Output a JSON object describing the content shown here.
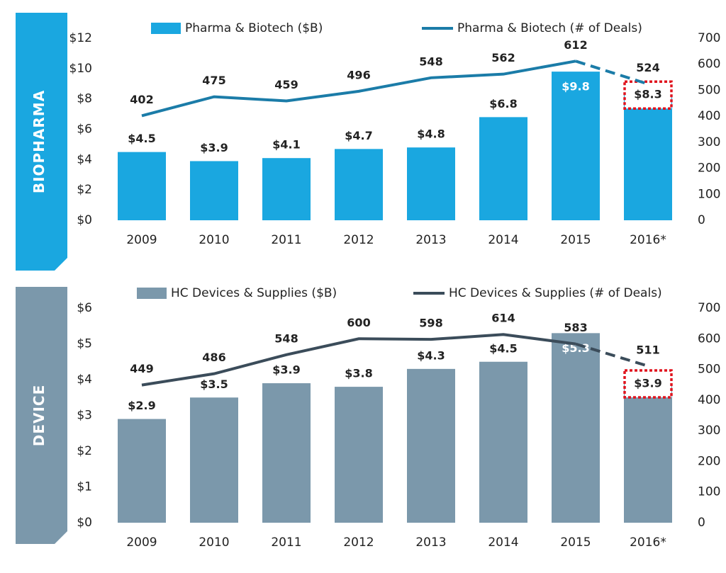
{
  "chart_data": [
    {
      "type": "bar",
      "panel_label": "BIOPHARMA",
      "panel_color": "#1aa7e0",
      "categories": [
        "2009",
        "2010",
        "2011",
        "2012",
        "2013",
        "2014",
        "2015",
        "2016*"
      ],
      "series": [
        {
          "name": "Pharma & Biotech ($B)",
          "type": "bar",
          "color": "#1aa7e0",
          "values": [
            4.5,
            3.9,
            4.1,
            4.7,
            4.8,
            6.8,
            9.8,
            8.3
          ],
          "value_labels": [
            "$4.5",
            "$3.9",
            "$4.1",
            "$4.7",
            "$4.8",
            "$6.8",
            "$9.8",
            "$8.3"
          ]
        },
        {
          "name": "Pharma & Biotech (# of Deals)",
          "type": "line",
          "axis": "y2",
          "color": "#1b7ca8",
          "values": [
            402,
            475,
            459,
            496,
            548,
            562,
            612,
            524
          ]
        }
      ],
      "ylim": [
        0,
        12
      ],
      "yticks": [
        {
          "value": 0,
          "label": "$0"
        },
        {
          "value": 2,
          "label": "$2"
        },
        {
          "value": 4,
          "label": "$4"
        },
        {
          "value": 6,
          "label": "$6"
        },
        {
          "value": 8,
          "label": "$8"
        },
        {
          "value": 10,
          "label": "$10"
        },
        {
          "value": 12,
          "label": "$12"
        }
      ],
      "y2lim": [
        0,
        700
      ],
      "y2ticks": [
        0,
        100,
        200,
        300,
        400,
        500,
        600,
        700
      ]
    },
    {
      "type": "bar",
      "panel_label": "DEVICE",
      "panel_color": "#7b98ab",
      "categories": [
        "2009",
        "2010",
        "2011",
        "2012",
        "2013",
        "2014",
        "2015",
        "2016*"
      ],
      "series": [
        {
          "name": "HC Devices & Supplies ($B)",
          "type": "bar",
          "color": "#7b98ab",
          "values": [
            2.9,
            3.5,
            3.9,
            3.8,
            4.3,
            4.5,
            5.3,
            3.9
          ],
          "value_labels": [
            "$2.9",
            "$3.5",
            "$3.9",
            "$3.8",
            "$4.3",
            "$4.5",
            "$5.3",
            "$3.9"
          ]
        },
        {
          "name": "HC Devices & Supplies (# of Deals)",
          "type": "line",
          "axis": "y2",
          "color": "#3b4c5a",
          "values": [
            449,
            486,
            548,
            600,
            598,
            614,
            583,
            511
          ]
        }
      ],
      "ylim": [
        0,
        6
      ],
      "yticks": [
        {
          "value": 0,
          "label": "$0"
        },
        {
          "value": 1,
          "label": "$1"
        },
        {
          "value": 2,
          "label": "$2"
        },
        {
          "value": 3,
          "label": "$3"
        },
        {
          "value": 4,
          "label": "$4"
        },
        {
          "value": 5,
          "label": "$5"
        },
        {
          "value": 6,
          "label": "$6"
        }
      ],
      "y2lim": [
        0,
        700
      ],
      "y2ticks": [
        0,
        100,
        200,
        300,
        400,
        500,
        600,
        700
      ]
    }
  ]
}
